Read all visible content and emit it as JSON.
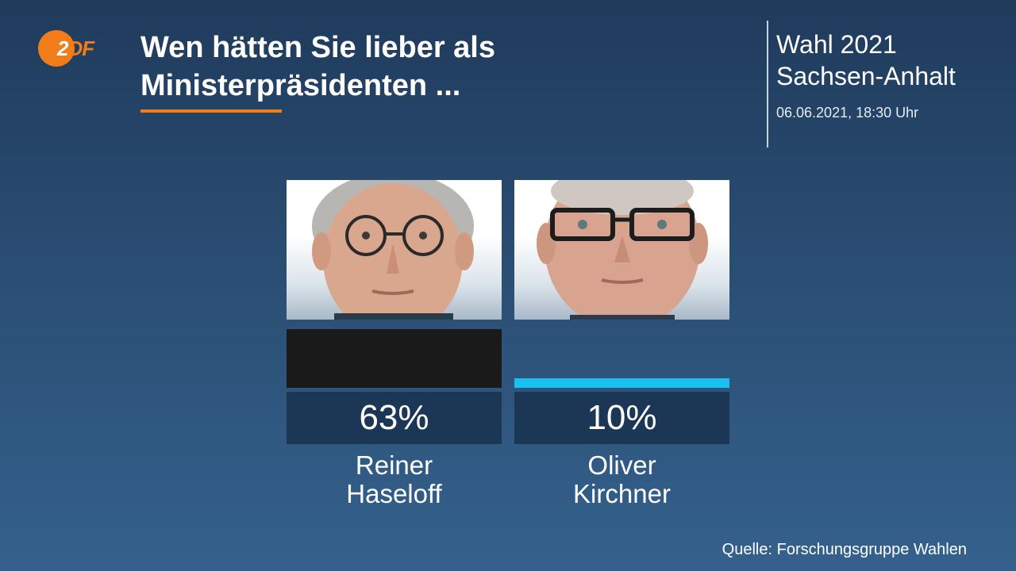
{
  "header": {
    "logo_text": "2DF",
    "title_line1": "Wen hätten Sie lieber als",
    "title_line2": "Ministerpräsidenten ...",
    "election_line1": "Wahl 2021",
    "election_line2": "Sachsen-Anhalt",
    "datetime": "06.06.2021, 18:30 Uhr"
  },
  "colors": {
    "accent": "#f07d1a",
    "value_box": "#1c3655"
  },
  "chart_data": {
    "type": "bar",
    "categories": [
      "Reiner\nHaseloff",
      "Oliver\nKirchner"
    ],
    "values": [
      63,
      10
    ],
    "value_labels": [
      "63%",
      "10%"
    ],
    "bar_colors": [
      "#1a1a1a",
      "#19c1f0"
    ],
    "ylim": [
      0,
      63
    ],
    "title": "Wen hätten Sie lieber als Ministerpräsidenten ..."
  },
  "candidates": [
    {
      "first": "Reiner",
      "last": "Haseloff",
      "value_label": "63%"
    },
    {
      "first": "Oliver",
      "last": "Kirchner",
      "value_label": "10%"
    }
  ],
  "source": "Quelle: Forschungsgruppe Wahlen"
}
